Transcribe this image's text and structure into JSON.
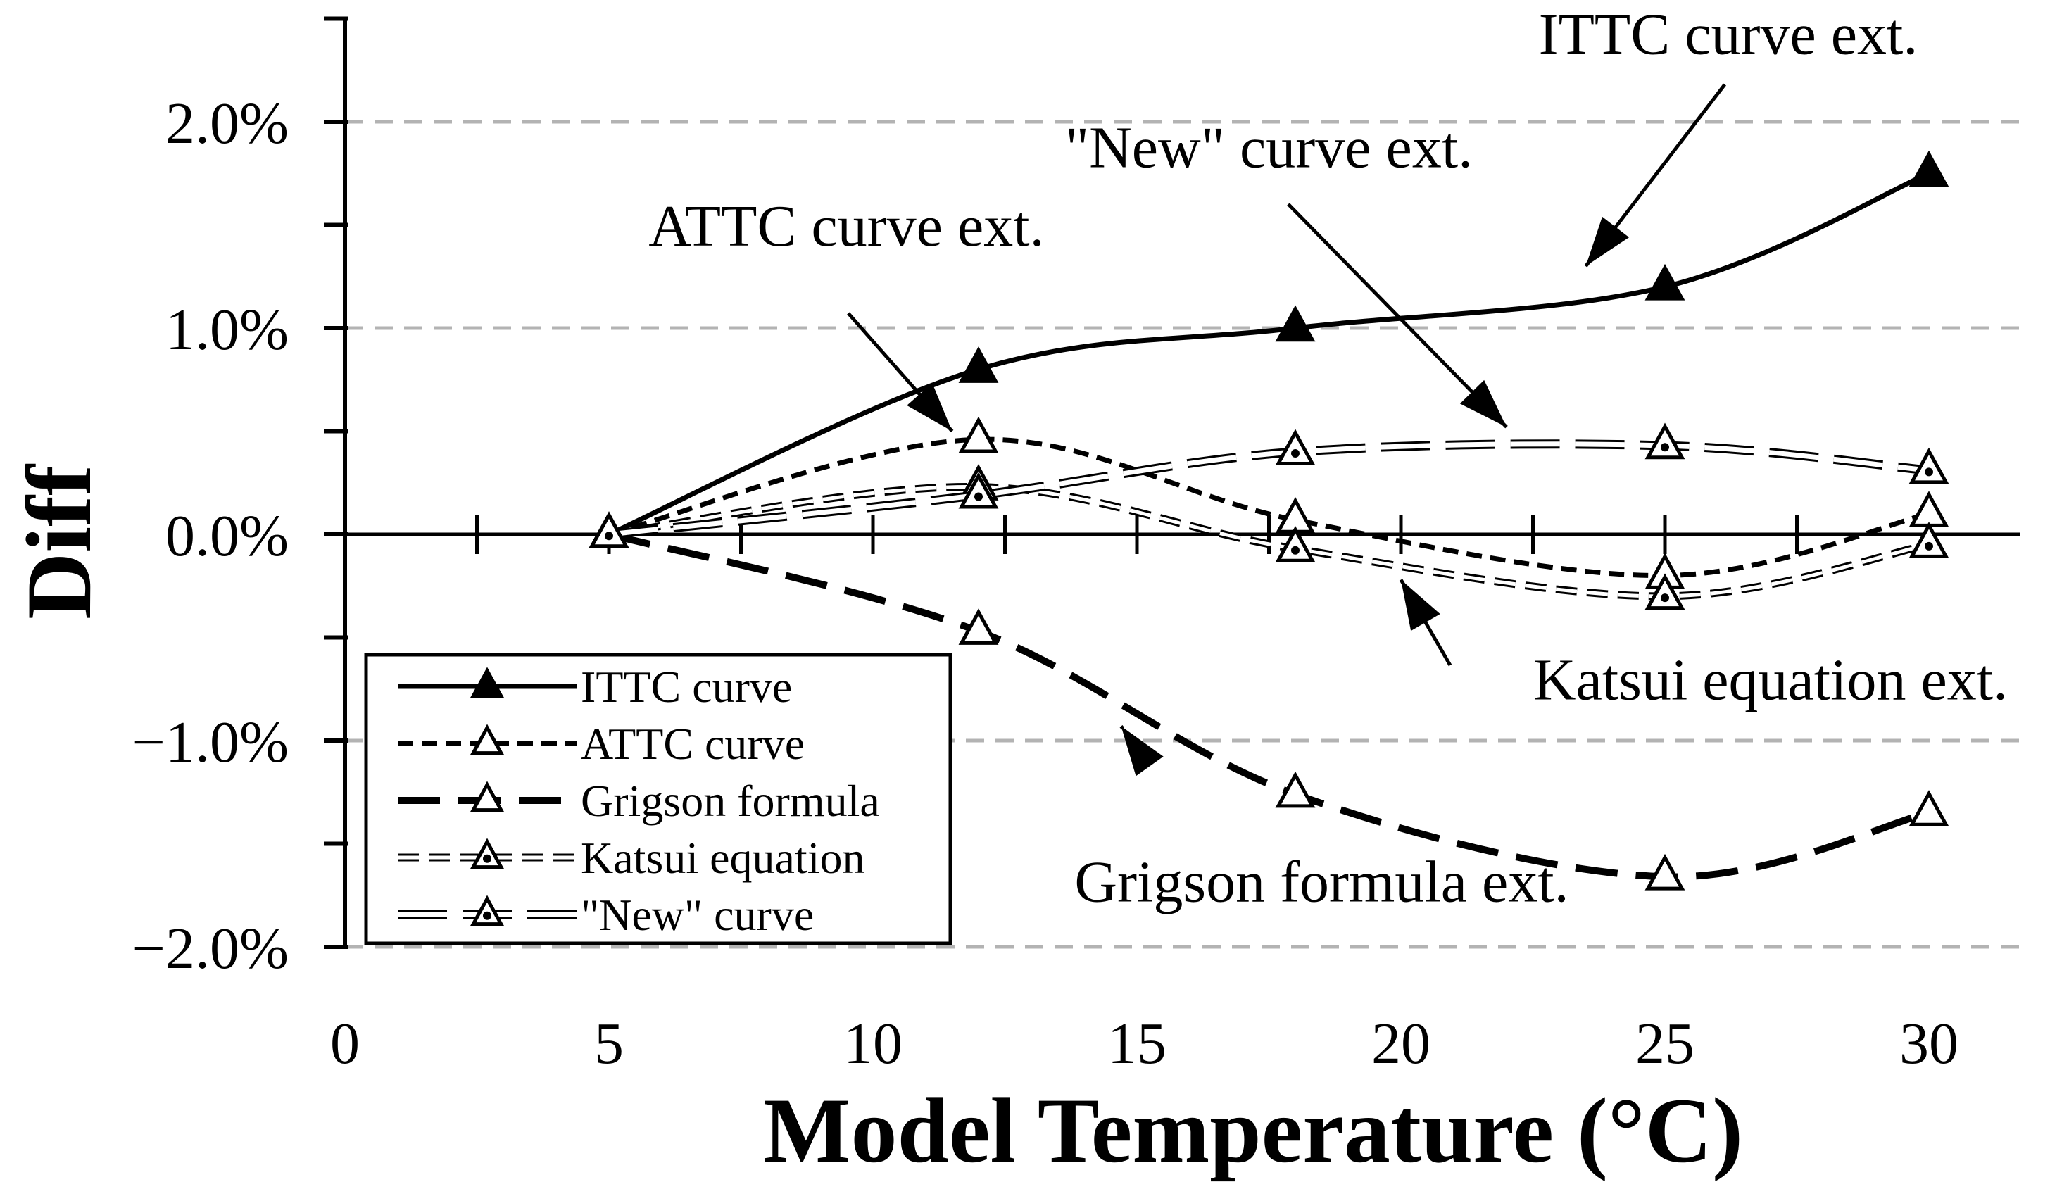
{
  "chart_data": {
    "type": "line",
    "title": "",
    "xlabel": "Model Temperature (°C)",
    "ylabel": "Diff",
    "xlim": [
      0,
      32
    ],
    "ylim": [
      -2.0,
      2.5
    ],
    "x_ticks": [
      0,
      5,
      10,
      15,
      20,
      25,
      30
    ],
    "x_tick_labels": [
      "0",
      "5",
      "10",
      "15",
      "20",
      "25",
      "30"
    ],
    "y_ticks": [
      -2.0,
      -1.0,
      0.0,
      1.0,
      2.0
    ],
    "y_tick_labels": [
      "−2.0%",
      "−1.0%",
      "0.0%",
      "1.0%",
      "2.0%"
    ],
    "grid": "horizontal dashed at major y ticks",
    "legend_position": "lower-left",
    "x": [
      5,
      12,
      18,
      25,
      30
    ],
    "series": [
      {
        "name": "ITTC curve",
        "style": "solid",
        "marker": "filled-triangle",
        "values": [
          0.0,
          0.8,
          1.0,
          1.2,
          1.75
        ]
      },
      {
        "name": "ATTC curve",
        "style": "short-dash",
        "marker": "open-triangle",
        "values": [
          0.0,
          0.46,
          0.07,
          -0.2,
          0.1
        ]
      },
      {
        "name": "Grigson formula",
        "style": "long-dash",
        "marker": "open-triangle",
        "values": [
          0.0,
          -0.47,
          -1.26,
          -1.66,
          -1.35
        ]
      },
      {
        "name": "Katsui equation",
        "style": "dashed-double",
        "marker": "dotted-triangle",
        "values": [
          0.0,
          0.23,
          -0.07,
          -0.3,
          -0.05
        ]
      },
      {
        "name": "\"New\" curve",
        "style": "long-dash-double",
        "marker": "dotted-triangle",
        "values": [
          0.0,
          0.19,
          0.4,
          0.43,
          0.31
        ]
      }
    ],
    "annotations": [
      {
        "text": "ITTC curve ext.",
        "x": 26.2,
        "y": 2.33,
        "arrow_to": [
          23.5,
          1.3
        ]
      },
      {
        "text": "\"New\" curve ext.",
        "x": 17.5,
        "y": 1.78,
        "arrow_to": [
          22.0,
          0.52
        ]
      },
      {
        "text": "ATTC curve ext.",
        "x": 9.5,
        "y": 1.4,
        "arrow_to": [
          11.5,
          0.5
        ]
      },
      {
        "text": "Katsui equation ext.",
        "x": 27.0,
        "y": -0.8,
        "arrow_to": [
          20.0,
          -0.22
        ]
      },
      {
        "text": "Grigson formula ext.",
        "x": 18.5,
        "y": -1.78,
        "arrow_to": [
          14.7,
          -0.93
        ]
      }
    ]
  }
}
